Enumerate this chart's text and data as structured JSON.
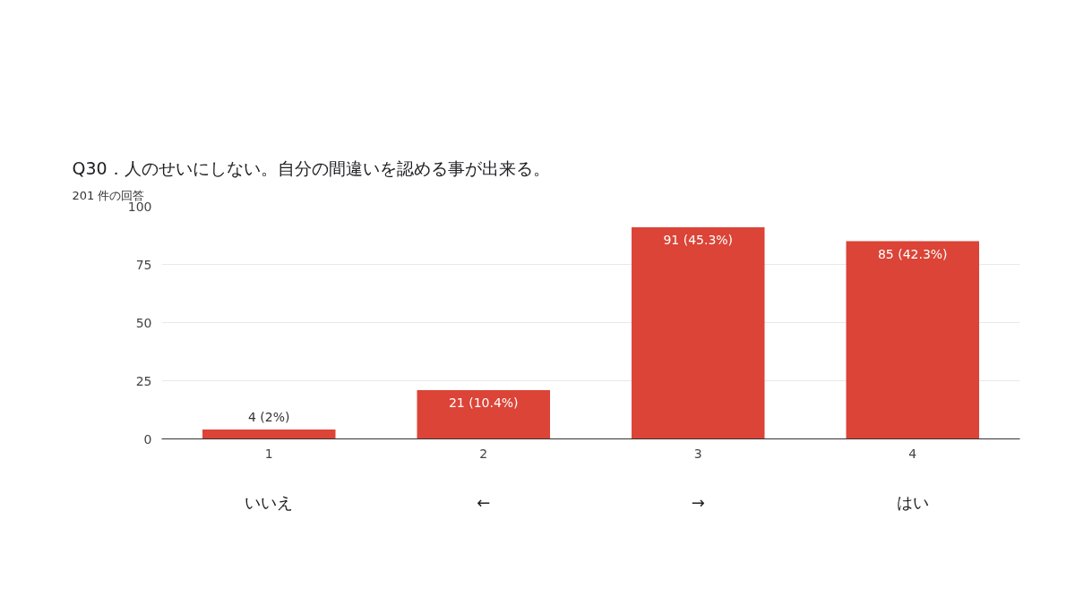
{
  "chart_data": {
    "type": "bar",
    "title": "Q30．人のせいにしない。自分の間違いを認める事が出来る。",
    "subtitle": "201 件の回答",
    "categories": [
      "1",
      "2",
      "3",
      "4"
    ],
    "values": [
      4,
      21,
      91,
      85
    ],
    "value_labels": [
      "4 (2%)",
      "21 (10.4%)",
      "91 (45.3%)",
      "85 (42.3%)"
    ],
    "color": "#db4437",
    "ylim": [
      0,
      100
    ],
    "yticks": [
      0,
      25,
      50,
      75,
      100
    ],
    "grid": "y",
    "annotations": [
      "いいえ",
      "←",
      "→",
      "はい"
    ]
  }
}
